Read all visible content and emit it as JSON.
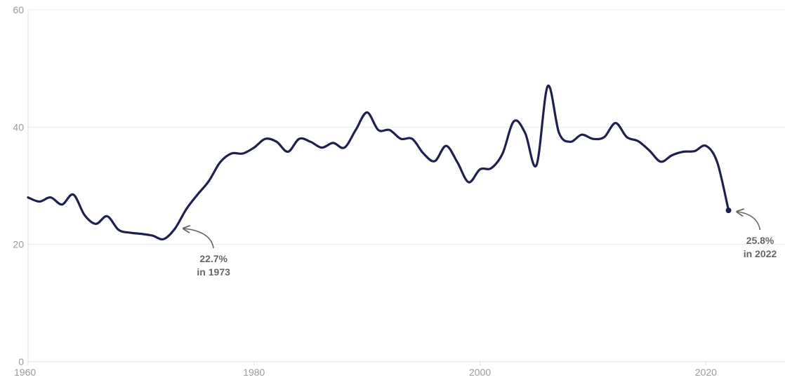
{
  "chart_data": {
    "type": "line",
    "title": "",
    "xlabel": "",
    "ylabel": "",
    "xlim": [
      1960,
      2027
    ],
    "ylim": [
      0,
      60
    ],
    "grid": true,
    "legend": "none",
    "x_ticks": [
      1960,
      1980,
      2000,
      2020
    ],
    "y_ticks": [
      0,
      20,
      40,
      60
    ],
    "x_tick_labels": [
      "1960",
      "1980",
      "2000",
      "2020"
    ],
    "y_tick_labels": [
      "0",
      "20",
      "40",
      "60"
    ],
    "colors": {
      "line": "#1e2150",
      "grid": "#ececec",
      "axis": "#e2e2e2",
      "annotation": "#666666"
    },
    "series": [
      {
        "x": [
          1960,
          1961,
          1962,
          1963,
          1964,
          1965,
          1966,
          1967,
          1968,
          1969,
          1970,
          1971,
          1972,
          1973,
          1974,
          1975,
          1976,
          1977,
          1978,
          1979,
          1980,
          1981,
          1982,
          1983,
          1984,
          1985,
          1986,
          1987,
          1988,
          1989,
          1990,
          1991,
          1992,
          1993,
          1994,
          1995,
          1996,
          1997,
          1998,
          1999,
          2000,
          2001,
          2002,
          2003,
          2004,
          2005,
          2006,
          2007,
          2008,
          2009,
          2010,
          2011,
          2012,
          2013,
          2014,
          2015,
          2016,
          2017,
          2018,
          2019,
          2020,
          2021,
          2022
        ],
        "values": [
          28.0,
          27.3,
          28.0,
          26.8,
          28.5,
          25.0,
          23.5,
          24.8,
          22.5,
          22.0,
          21.8,
          21.5,
          20.9,
          22.7,
          26.0,
          28.5,
          30.8,
          34.0,
          35.5,
          35.5,
          36.5,
          38.0,
          37.5,
          35.8,
          38.0,
          37.5,
          36.5,
          37.3,
          36.5,
          39.5,
          42.5,
          39.5,
          39.5,
          38.0,
          38.0,
          35.5,
          34.2,
          36.8,
          34.0,
          30.6,
          32.8,
          33.0,
          35.5,
          41.0,
          39.0,
          33.5,
          47.0,
          39.0,
          37.5,
          38.7,
          38.0,
          38.3,
          40.7,
          38.3,
          37.6,
          36.0,
          34.1,
          35.2,
          35.8,
          35.9,
          36.8,
          34.0,
          25.8
        ]
      }
    ],
    "annotations": [
      {
        "x": 1973,
        "y": 22.7,
        "line1": "22.7%",
        "line2": "in 1973"
      },
      {
        "x": 2022,
        "y": 25.8,
        "line1": "25.8%",
        "line2": "in 2022"
      }
    ]
  }
}
